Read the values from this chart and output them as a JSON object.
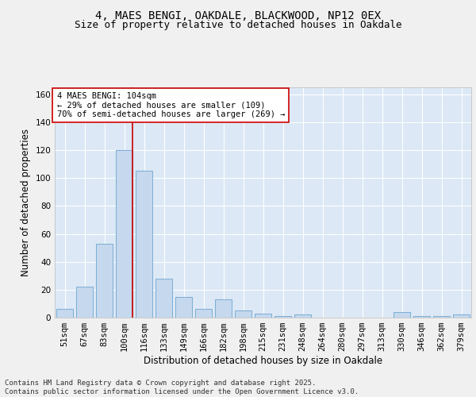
{
  "title_line1": "4, MAES BENGI, OAKDALE, BLACKWOOD, NP12 0EX",
  "title_line2": "Size of property relative to detached houses in Oakdale",
  "xlabel": "Distribution of detached houses by size in Oakdale",
  "ylabel": "Number of detached properties",
  "categories": [
    "51sqm",
    "67sqm",
    "83sqm",
    "100sqm",
    "116sqm",
    "133sqm",
    "149sqm",
    "166sqm",
    "182sqm",
    "198sqm",
    "215sqm",
    "231sqm",
    "248sqm",
    "264sqm",
    "280sqm",
    "297sqm",
    "313sqm",
    "330sqm",
    "346sqm",
    "362sqm",
    "379sqm"
  ],
  "values": [
    6,
    22,
    53,
    120,
    105,
    28,
    15,
    6,
    13,
    5,
    3,
    1,
    2,
    0,
    0,
    0,
    0,
    4,
    1,
    1,
    2
  ],
  "bar_color": "#c5d8ee",
  "bar_edge_color": "#7aadd4",
  "bg_color": "#dce8f5",
  "grid_color": "#ffffff",
  "red_line_index": 3,
  "annotation_text": "4 MAES BENGI: 104sqm\n← 29% of detached houses are smaller (109)\n70% of semi-detached houses are larger (269) →",
  "annotation_box_color": "#ffffff",
  "annotation_box_edge": "#cc0000",
  "ylim": [
    0,
    165
  ],
  "yticks": [
    0,
    20,
    40,
    60,
    80,
    100,
    120,
    140,
    160
  ],
  "footer": "Contains HM Land Registry data © Crown copyright and database right 2025.\nContains public sector information licensed under the Open Government Licence v3.0.",
  "title_fontsize": 10,
  "subtitle_fontsize": 9,
  "axis_label_fontsize": 8.5,
  "tick_fontsize": 7.5,
  "annotation_fontsize": 7.5,
  "footer_fontsize": 6.5
}
